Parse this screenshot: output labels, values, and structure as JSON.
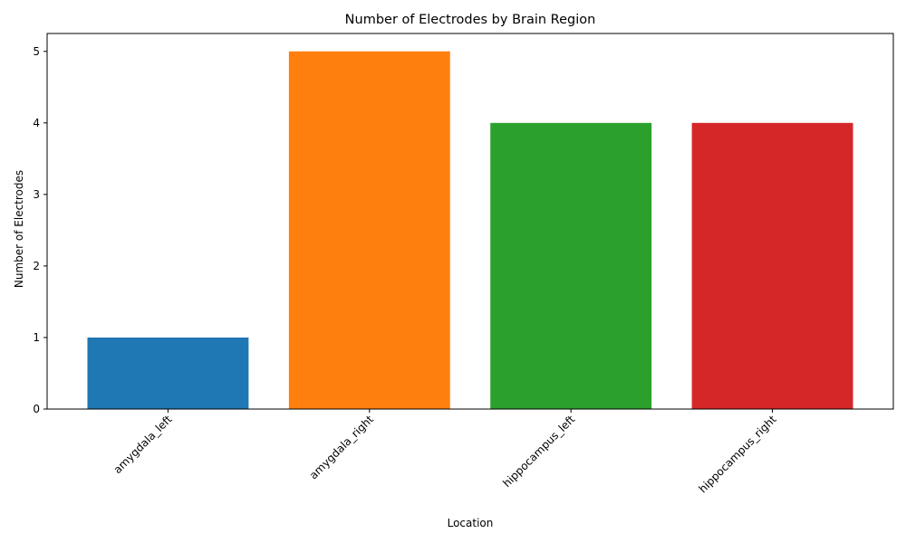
{
  "chart_data": {
    "type": "bar",
    "title": "Number of Electrodes by Brain Region",
    "xlabel": "Location",
    "ylabel": "Number of Electrodes",
    "categories": [
      "amygdala_left",
      "amygdala_right",
      "hippocampus_left",
      "hippocampus_right"
    ],
    "values": [
      1,
      5,
      4,
      4
    ],
    "colors": [
      "#1f77b4",
      "#ff7f0e",
      "#2ca02c",
      "#d62728"
    ],
    "ylim": [
      0,
      5.25
    ],
    "yticks": [
      0,
      1,
      2,
      3,
      4,
      5
    ],
    "grid": false,
    "legend": "none"
  }
}
